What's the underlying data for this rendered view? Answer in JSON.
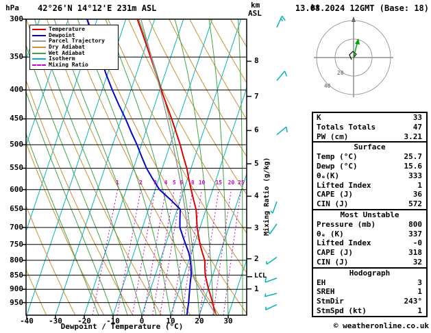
{
  "header": {
    "pressure_unit": "hPa",
    "location": "42°26'N 14°12'E 231m ASL",
    "datetime": "13.08.2024 12GMT (Base: 18)",
    "km_unit": "km",
    "asl_unit": "ASL",
    "hodograph_unit": "kt",
    "copyright": "© weatheronline.co.uk"
  },
  "colors": {
    "temperature": "#dd0000",
    "dewpoint": "#0000cc",
    "parcel": "#999999",
    "dry_adiabat": "#cc8f33",
    "wet_adiabat": "#3fa63f",
    "isotherm": "#00b5b5",
    "mixing_ratio": "#cc00cc",
    "wind_barb": "#00b5b5",
    "axis": "#000000"
  },
  "legend": {
    "items": [
      {
        "label": "Temperature",
        "key": "temperature",
        "dashed": false
      },
      {
        "label": "Dewpoint",
        "key": "dewpoint",
        "dashed": false
      },
      {
        "label": "Parcel Trajectory",
        "key": "parcel",
        "dashed": false
      },
      {
        "label": "Dry Adiabat",
        "key": "dry_adiabat",
        "dashed": false
      },
      {
        "label": "Wet Adiabat",
        "key": "wet_adiabat",
        "dashed": false
      },
      {
        "label": "Isotherm",
        "key": "isotherm",
        "dashed": false
      },
      {
        "label": "Mixing Ratio",
        "key": "mixing_ratio",
        "dashed": true
      }
    ]
  },
  "axes": {
    "pressure_ticks": [
      300,
      350,
      400,
      450,
      500,
      550,
      600,
      650,
      700,
      750,
      800,
      850,
      900,
      950
    ],
    "temp_ticks": [
      -40,
      -30,
      -20,
      -10,
      0,
      10,
      20,
      30
    ],
    "km_ticks": [
      1,
      2,
      3,
      4,
      5,
      6,
      7,
      8
    ],
    "x_label": "Dewpoint / Temperature (°C)",
    "mixing_axis_label": "Mixing Ratio (g/kg)",
    "lcl_label": "LCL",
    "lcl_pressure_hpa": 855
  },
  "chart_data": {
    "type": "line",
    "title": "Skew-T log-P sounding",
    "x_axis": {
      "label": "Dewpoint / Temperature (°C)",
      "range_c": [
        -40,
        35
      ]
    },
    "y_axis": {
      "label": "hPa",
      "scale": "log",
      "range_hpa": [
        300,
        1000
      ]
    },
    "isotherm_step_c": 10,
    "series": [
      {
        "name": "Temperature",
        "key": "temperature",
        "width": 2,
        "points": [
          [
            998,
            25.7
          ],
          [
            975,
            24.4
          ],
          [
            950,
            23.1
          ],
          [
            925,
            21.7
          ],
          [
            900,
            20.2
          ],
          [
            875,
            18.8
          ],
          [
            850,
            17.4
          ],
          [
            825,
            16.4
          ],
          [
            800,
            15.5
          ],
          [
            775,
            13.7
          ],
          [
            750,
            12.0
          ],
          [
            725,
            10.5
          ],
          [
            700,
            9.0
          ],
          [
            675,
            7.8
          ],
          [
            650,
            6.5
          ],
          [
            625,
            4.5
          ],
          [
            600,
            2.5
          ],
          [
            575,
            0.5
          ],
          [
            550,
            -1.5
          ],
          [
            525,
            -4.0
          ],
          [
            500,
            -6.5
          ],
          [
            475,
            -9.4
          ],
          [
            450,
            -12.5
          ],
          [
            425,
            -15.9
          ],
          [
            400,
            -19.5
          ],
          [
            375,
            -23.1
          ],
          [
            350,
            -27.0
          ],
          [
            325,
            -31.3
          ],
          [
            300,
            -36.0
          ]
        ]
      },
      {
        "name": "Dewpoint",
        "key": "dewpoint",
        "width": 2,
        "points": [
          [
            998,
            15.6
          ],
          [
            975,
            15.2
          ],
          [
            950,
            14.8
          ],
          [
            925,
            14.2
          ],
          [
            900,
            13.6
          ],
          [
            875,
            13.0
          ],
          [
            850,
            12.5
          ],
          [
            825,
            11.6
          ],
          [
            800,
            10.5
          ],
          [
            775,
            9.0
          ],
          [
            750,
            7.0
          ],
          [
            725,
            5.0
          ],
          [
            700,
            3.0
          ],
          [
            675,
            2.0
          ],
          [
            650,
            1.0
          ],
          [
            625,
            -3.5
          ],
          [
            600,
            -8.5
          ],
          [
            575,
            -12.0
          ],
          [
            550,
            -15.5
          ],
          [
            525,
            -18.5
          ],
          [
            500,
            -21.5
          ],
          [
            475,
            -25.0
          ],
          [
            450,
            -28.5
          ],
          [
            425,
            -32.5
          ],
          [
            400,
            -36.5
          ],
          [
            375,
            -40.5
          ],
          [
            350,
            -44.5
          ],
          [
            325,
            -49.0
          ],
          [
            300,
            -53.5
          ]
        ]
      },
      {
        "name": "Parcel Trajectory",
        "key": "parcel",
        "width": 1.5,
        "points": [
          [
            998,
            25.7
          ],
          [
            950,
            21.6
          ],
          [
            900,
            17.2
          ],
          [
            855,
            13.3
          ],
          [
            800,
            10.8
          ],
          [
            750,
            8.4
          ],
          [
            700,
            5.7
          ],
          [
            650,
            2.7
          ],
          [
            600,
            -0.7
          ],
          [
            550,
            -4.6
          ],
          [
            500,
            -9.0
          ],
          [
            450,
            -14.0
          ],
          [
            400,
            -19.8
          ],
          [
            350,
            -26.7
          ],
          [
            300,
            -34.8
          ]
        ]
      }
    ],
    "mixing_ratio_g_kg": [
      1,
      2,
      3,
      4,
      5,
      6,
      8,
      10,
      15,
      20,
      25
    ],
    "dry_adiabats_K": [
      230,
      240,
      250,
      260,
      270,
      280,
      290,
      300,
      310,
      320,
      330,
      340,
      350,
      360,
      370,
      380,
      390,
      400,
      410,
      420,
      430,
      440
    ],
    "wet_adiabats_C": [
      -15,
      -10,
      -5,
      0,
      5,
      10,
      15,
      20,
      25,
      30,
      35
    ]
  },
  "wind_barbs": [
    {
      "p": 310,
      "dir": 25,
      "spd": 15
    },
    {
      "p": 385,
      "dir": 40,
      "spd": 10
    },
    {
      "p": 480,
      "dir": 50,
      "spd": 10
    },
    {
      "p": 630,
      "dir": 200,
      "spd": 5
    },
    {
      "p": 690,
      "dir": 215,
      "spd": 5
    },
    {
      "p": 790,
      "dir": 235,
      "spd": 5
    },
    {
      "p": 860,
      "dir": 250,
      "spd": 10
    },
    {
      "p": 915,
      "dir": 255,
      "spd": 5
    },
    {
      "p": 958,
      "dir": 245,
      "spd": 5
    }
  ],
  "hodograph": {
    "rings_kt": [
      20,
      40
    ],
    "trace": [
      [
        0,
        0
      ],
      [
        4,
        -5
      ],
      [
        -1,
        -9
      ],
      [
        -6,
        -4
      ],
      [
        -3,
        3
      ]
    ],
    "arrow": [
      6,
      -24
    ]
  },
  "indices": {
    "sections": [
      {
        "header": "",
        "rows": [
          [
            "K",
            "33"
          ],
          [
            "Totals Totals",
            "47"
          ],
          [
            "PW (cm)",
            "3.21"
          ]
        ]
      },
      {
        "header": "Surface",
        "rows": [
          [
            "Temp (°C)",
            "25.7"
          ],
          [
            "Dewp (°C)",
            "15.6"
          ],
          [
            "θₑ(K)",
            "333"
          ],
          [
            "Lifted Index",
            "1"
          ],
          [
            "CAPE (J)",
            "36"
          ],
          [
            "CIN (J)",
            "572"
          ]
        ]
      },
      {
        "header": "Most Unstable",
        "rows": [
          [
            "Pressure (mb)",
            "800"
          ],
          [
            "θₑ (K)",
            "337"
          ],
          [
            "Lifted Index",
            "-0"
          ],
          [
            "CAPE (J)",
            "318"
          ],
          [
            "CIN (J)",
            "32"
          ]
        ]
      },
      {
        "header": "Hodograph",
        "rows": [
          [
            "EH",
            "3"
          ],
          [
            "SREH",
            "1"
          ],
          [
            "StmDir",
            "243°"
          ],
          [
            "StmSpd (kt)",
            "1"
          ]
        ]
      }
    ]
  }
}
